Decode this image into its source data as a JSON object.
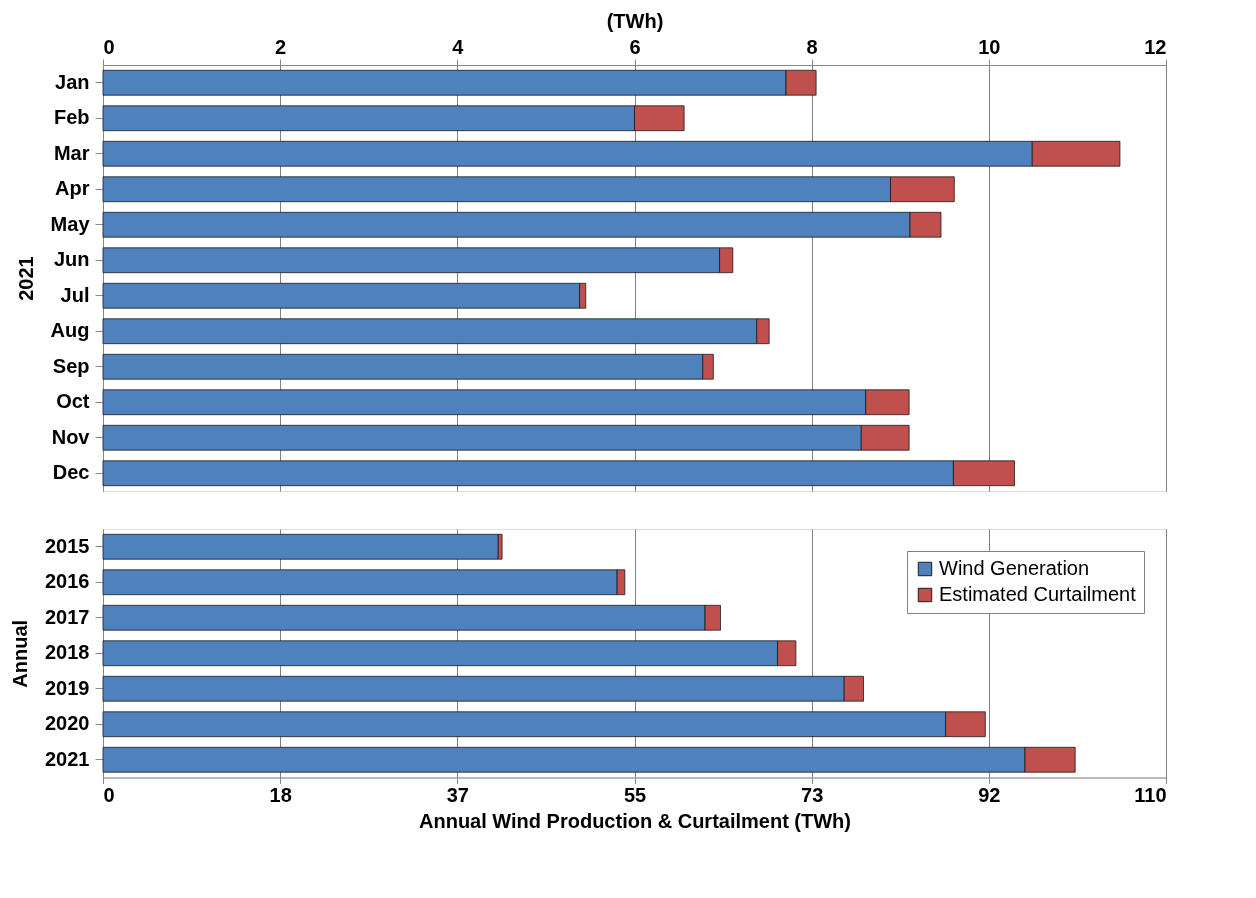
{
  "chart_data": [
    {
      "type": "bar",
      "orientation": "horizontal",
      "stacked": true,
      "ylabel": "2021",
      "x2label": "(TWh)",
      "categories": [
        "Jan",
        "Feb",
        "Mar",
        "Apr",
        "May",
        "Jun",
        "Jul",
        "Aug",
        "Sep",
        "Oct",
        "Nov",
        "Dec"
      ],
      "series": [
        {
          "color": "#4f81bd",
          "axis": "x2",
          "values": [
            7.71,
            6.0,
            10.49,
            8.89,
            9.11,
            6.96,
            5.38,
            7.38,
            6.77,
            8.61,
            8.56,
            9.6
          ]
        },
        {
          "color": "#c0504d",
          "axis": "x2",
          "values": [
            0.34,
            0.56,
            0.99,
            0.72,
            0.35,
            0.15,
            0.07,
            0.14,
            0.12,
            0.49,
            0.54,
            0.69
          ]
        }
      ],
      "x2lim": [
        0,
        12
      ],
      "x2ticks": [
        0,
        2,
        4,
        6,
        8,
        10,
        12
      ],
      "grid": "x"
    },
    {
      "type": "bar",
      "orientation": "horizontal",
      "stacked": true,
      "ylabel": "Annual",
      "xlabel": "Annual Wind Production & Curtailment (TWh)",
      "categories": [
        "2015",
        "2016",
        "2017",
        "2018",
        "2019",
        "2020",
        "2021"
      ],
      "series": [
        {
          "name": "Wind Generation",
          "color": "#4f81bd",
          "values": [
            40.9,
            53.2,
            62.3,
            69.8,
            76.7,
            87.2,
            95.4
          ]
        },
        {
          "name": "Estimated Curtailment",
          "color": "#c0504d",
          "values": [
            0.4,
            0.8,
            1.6,
            1.9,
            2.0,
            4.1,
            5.2
          ]
        }
      ],
      "xlim": [
        0,
        110
      ],
      "xticks": [
        0,
        {
          "value": 18.333,
          "label": "18"
        },
        {
          "value": 36.667,
          "label": "37"
        },
        55,
        {
          "value": 73.333,
          "label": "73"
        },
        {
          "value": 91.667,
          "label": "92"
        },
        110
      ],
      "grid": "x",
      "legend": "top right"
    }
  ]
}
